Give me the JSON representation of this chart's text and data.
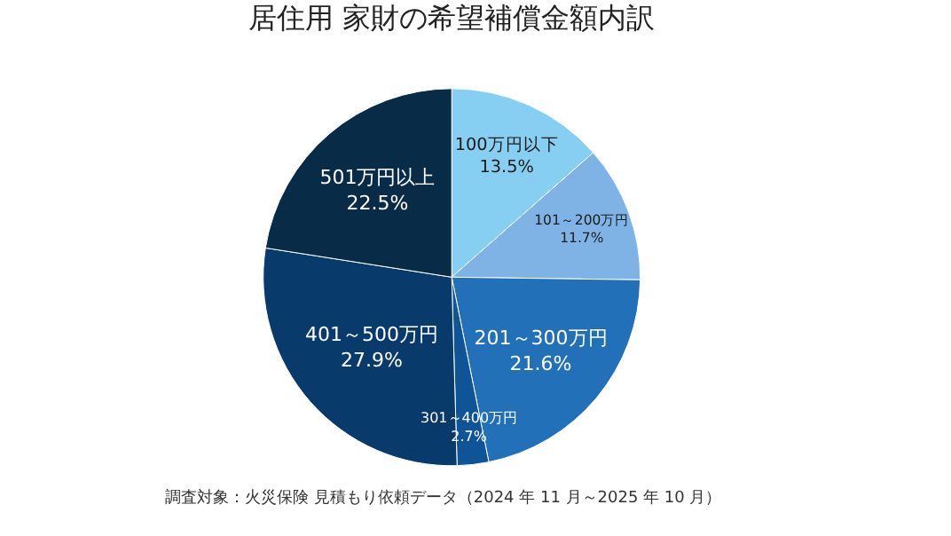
{
  "chart_data": {
    "type": "pie",
    "title": "居住用 家財の希望補償金額内訳",
    "categories": [
      "100万円以下",
      "101～200万円",
      "201～300万円",
      "301～400万円",
      "401～500万円",
      "501万円以上"
    ],
    "values": [
      13.5,
      11.7,
      21.6,
      2.7,
      27.9,
      22.5
    ],
    "value_labels": [
      "13.5%",
      "11.7%",
      "21.6%",
      "2.7%",
      "27.9%",
      "22.5%"
    ],
    "colors": [
      "#87cff2",
      "#7fb3e6",
      "#2170b8",
      "#0e5496",
      "#083a6b",
      "#082b48"
    ],
    "annotations": [
      "調査対象：火災保険 見積もり依頼データ（2024 年 11 月～2025 年 10 月）"
    ]
  }
}
